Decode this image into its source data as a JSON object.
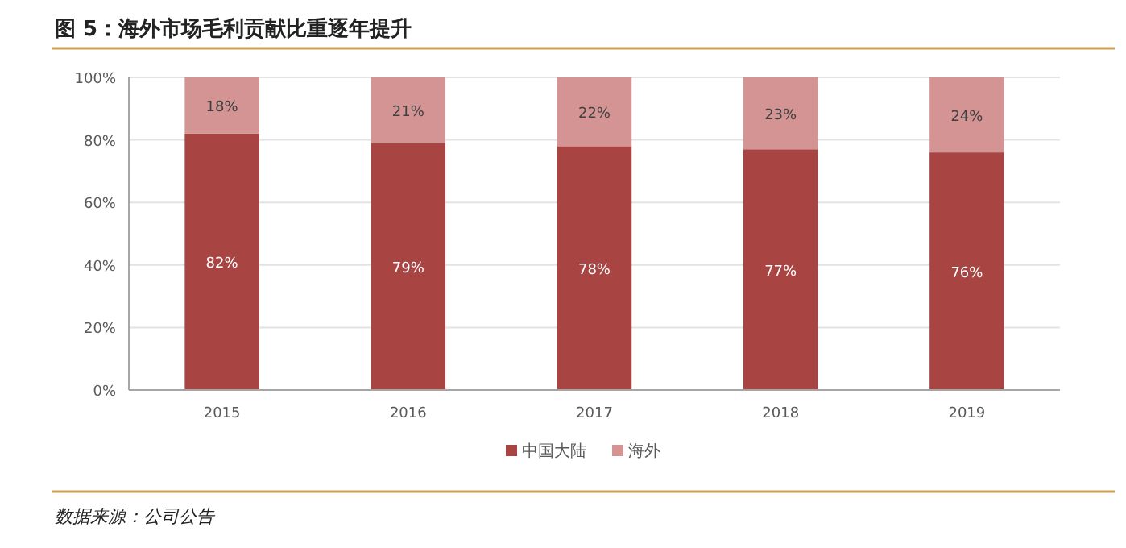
{
  "chart_data": {
    "type": "bar",
    "title": "图 5：海外市场毛利贡献比重逐年提升",
    "categories": [
      "2015",
      "2016",
      "2017",
      "2018",
      "2019"
    ],
    "stacked": true,
    "series": [
      {
        "name": "中国大陆",
        "color": "#a84442",
        "values": [
          82,
          79,
          78,
          77,
          76
        ],
        "value_labels": [
          "82%",
          "79%",
          "78%",
          "77%",
          "76%"
        ]
      },
      {
        "name": "海外",
        "color": "#d49494",
        "values": [
          18,
          21,
          22,
          23,
          24
        ],
        "value_labels": [
          "18%",
          "21%",
          "22%",
          "23%",
          "24%"
        ]
      }
    ],
    "ylim": [
      0,
      100
    ],
    "yticks": [
      {
        "value": 0,
        "label": "0%"
      },
      {
        "value": 20,
        "label": "20%"
      },
      {
        "value": 40,
        "label": "40%"
      },
      {
        "value": 60,
        "label": "60%"
      },
      {
        "value": 80,
        "label": "80%"
      },
      {
        "value": 100,
        "label": "100%"
      }
    ],
    "grid": "y",
    "legend": "bottom",
    "annotations": [
      "数据来源：公司公告"
    ]
  }
}
